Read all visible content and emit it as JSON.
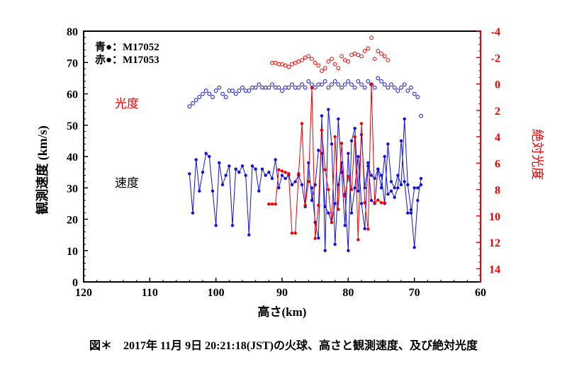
{
  "chart_data": {
    "type": "scatter",
    "xlabel": "高さ(km)",
    "ylabel": "観測速度 (km/s)",
    "y2label": "絶対光度",
    "xlim": [
      120,
      60
    ],
    "ylim": [
      0,
      80
    ],
    "y2lim": [
      15,
      -4
    ],
    "xticks": [
      120,
      110,
      100,
      90,
      80,
      70,
      60
    ],
    "yticks": [
      0,
      10,
      20,
      30,
      40,
      50,
      60,
      70,
      80
    ],
    "y2ticks": [
      -4,
      -2,
      0,
      2,
      4,
      6,
      8,
      10,
      12,
      14
    ],
    "annotations": {
      "brightness": "光度",
      "speed": "速度"
    },
    "legend": {
      "blue": "青●：M17052",
      "red": "赤●：M17053"
    },
    "colors": {
      "blue": "#1010dd",
      "red": "#ee0000"
    },
    "series": [
      {
        "axis": "left",
        "style": "line-filled",
        "color": "blue",
        "x": [
          104,
          103.5,
          103,
          102.5,
          102,
          101.5,
          101,
          100.5,
          100,
          99.5,
          99,
          98.5,
          98,
          97.5,
          97,
          96.5,
          96,
          95.5,
          95,
          94.5,
          94,
          93.5,
          93,
          92.5,
          92,
          91.5,
          91,
          90.5,
          90,
          89.5,
          89,
          88.5,
          88,
          87.5,
          87,
          86.5,
          86,
          85.5,
          85,
          84.5,
          84,
          83.5,
          83,
          82.5,
          82,
          81.5,
          81,
          80.5,
          80,
          79.5,
          79,
          78.5,
          78,
          77.5,
          77,
          76.5,
          76,
          75.5,
          75,
          74.5,
          74,
          73.5,
          73,
          72.5,
          72,
          71.5,
          71,
          70.5,
          70,
          69.5,
          69
        ],
        "y": [
          34.5,
          22,
          39,
          29,
          35,
          41,
          40,
          29,
          18,
          38,
          31,
          34,
          37,
          18,
          36,
          35,
          37,
          34,
          15,
          37,
          36,
          29,
          36,
          34,
          35,
          33,
          39,
          30,
          34,
          33,
          34,
          31,
          32,
          34,
          31,
          24,
          38,
          26,
          31,
          42,
          41,
          24,
          22,
          19,
          25,
          52,
          35,
          18,
          41,
          22,
          30,
          40,
          25,
          17,
          38,
          26,
          25,
          36,
          30,
          40,
          28,
          29,
          27,
          30,
          45,
          32,
          22,
          22,
          30,
          30,
          31
        ]
      },
      {
        "axis": "left",
        "style": "line-filled",
        "color": "blue",
        "x": [
          85.5,
          85,
          84.5,
          84,
          83.5,
          83,
          82.5,
          82,
          81.5,
          81,
          80.5,
          80,
          79.5,
          79,
          78.5,
          78,
          77.5,
          77,
          76.5,
          76,
          75.5,
          75,
          74.5,
          74,
          73.5,
          73,
          72.5,
          72,
          71.5,
          71,
          70.5,
          70,
          69.5,
          69
        ],
        "y": [
          30,
          19,
          14,
          53,
          10,
          55,
          44,
          12,
          31,
          38,
          28,
          10,
          45,
          49,
          29,
          47,
          30,
          37,
          34,
          33,
          36,
          34,
          25,
          44,
          32,
          30,
          34,
          31,
          52,
          31,
          23,
          11,
          26,
          33
        ]
      },
      {
        "axis": "left",
        "style": "open-circles",
        "color": "blue",
        "x": [
          104,
          103.5,
          103,
          102.5,
          102,
          101.5,
          101,
          100.5,
          100,
          99.5,
          99,
          98.5,
          98,
          97.5,
          97,
          96.5,
          96,
          95.5,
          95,
          94.5,
          94,
          93.5,
          93,
          92.5,
          92,
          91.5,
          91,
          90.5,
          90,
          89.5,
          89,
          88.5,
          88,
          87.5,
          87,
          86.5,
          86,
          85.5,
          85,
          84.5,
          84,
          83.5,
          83,
          82.5,
          82,
          81.5,
          81,
          80.5,
          80,
          79.5,
          79,
          78.5,
          78,
          77.5,
          77,
          76.5,
          76,
          75.5,
          75,
          74.5,
          74,
          73.5,
          73,
          72.5,
          72,
          71.5,
          71,
          70.5,
          70,
          69.5,
          69
        ],
        "y": [
          56,
          57,
          58,
          59,
          60,
          61,
          60,
          59,
          61,
          62,
          60,
          59,
          61,
          61,
          60,
          61,
          62,
          61,
          61,
          62,
          62,
          63,
          62,
          62,
          62,
          63,
          62,
          62,
          61,
          62,
          62,
          63,
          62,
          62,
          63,
          62,
          64,
          63,
          62,
          63,
          63,
          64,
          62,
          63,
          64,
          63,
          62,
          63,
          64,
          63,
          62,
          64,
          63,
          62,
          64,
          63,
          62,
          65,
          64,
          63,
          62,
          63,
          62,
          61,
          62,
          63,
          61,
          62,
          60,
          59,
          53
        ]
      },
      {
        "axis": "right",
        "style": "line-filled",
        "color": "red",
        "x": [
          92,
          91.5,
          91,
          90.5,
          90,
          89.5,
          89,
          88.5,
          88,
          87.5,
          87,
          86.5,
          86,
          85.5,
          85,
          84.5,
          84,
          83.5,
          83,
          82.5,
          82,
          81.5,
          81,
          80.5,
          80,
          79.5,
          79,
          78.5,
          78,
          77.5,
          77,
          76.5,
          76,
          75.5,
          75,
          74.5
        ],
        "y": [
          9.1,
          9.1,
          9.1,
          6.5,
          6.6,
          6.7,
          6.8,
          11.3,
          11.3,
          6.8,
          3,
          9.2,
          7.4,
          0.3,
          11.7,
          9.2,
          3.5,
          6.5,
          8,
          10.5,
          4,
          9.5,
          4.5,
          8.5,
          7,
          8,
          4,
          11.8,
          3,
          9,
          11,
          0,
          9,
          8.8,
          9,
          9
        ]
      },
      {
        "axis": "right",
        "style": "open-circles",
        "color": "red",
        "x": [
          91.5,
          91,
          90.5,
          90,
          89.5,
          89,
          88.5,
          88,
          87.5,
          87,
          86.5,
          86,
          85.5,
          85,
          84.5,
          84,
          83.5,
          83,
          82.5,
          82,
          81.5,
          81,
          80.5,
          80,
          79.5,
          79,
          78.5,
          78,
          77.5,
          77,
          76.5,
          76,
          75.5,
          75,
          74.5,
          74
        ],
        "y": [
          -1.6,
          -1.6,
          -1.5,
          -1.5,
          -1.4,
          -1.3,
          -1.5,
          -1.6,
          -1.7,
          -1.8,
          -2,
          -2.1,
          -1.9,
          -1.6,
          -1.4,
          -1,
          -1.2,
          -1.7,
          -1.9,
          -1.5,
          -1.2,
          -2.1,
          -1.8,
          -1.7,
          -2.2,
          -2.3,
          -2.2,
          -2.1,
          -2.5,
          -2.7,
          -3.5,
          -1.9,
          -2.5,
          -2.3,
          -2.1,
          -1.8
        ]
      }
    ]
  },
  "caption": "図＊　2017年 11月 9日 20:21:18(JST)の火球、高さと観測速度、及び絶対光度"
}
